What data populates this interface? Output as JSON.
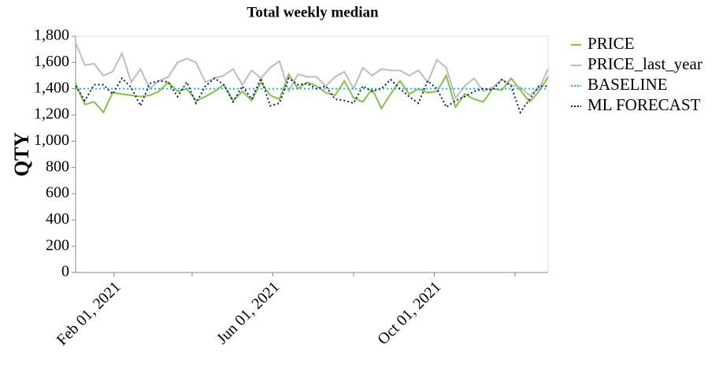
{
  "chart_data": {
    "type": "line",
    "title": "Total weekly median",
    "ylabel": "QTY",
    "x": [
      "2021-01-03",
      "2021-01-10",
      "2021-01-17",
      "2021-01-24",
      "2021-01-31",
      "2021-02-07",
      "2021-02-14",
      "2021-02-21",
      "2021-02-28",
      "2021-03-07",
      "2021-03-14",
      "2021-03-21",
      "2021-03-28",
      "2021-04-04",
      "2021-04-11",
      "2021-04-18",
      "2021-04-25",
      "2021-05-02",
      "2021-05-09",
      "2021-05-16",
      "2021-05-23",
      "2021-05-30",
      "2021-06-06",
      "2021-06-13",
      "2021-06-20",
      "2021-06-27",
      "2021-07-04",
      "2021-07-11",
      "2021-07-18",
      "2021-07-25",
      "2021-08-01",
      "2021-08-08",
      "2021-08-15",
      "2021-08-22",
      "2021-08-29",
      "2021-09-05",
      "2021-09-12",
      "2021-09-19",
      "2021-09-26",
      "2021-10-03",
      "2021-10-10",
      "2021-10-17",
      "2021-10-24",
      "2021-10-31",
      "2021-11-07",
      "2021-11-14",
      "2021-11-21",
      "2021-11-28",
      "2021-12-05",
      "2021-12-12",
      "2021-12-19",
      "2021-12-26"
    ],
    "xlim": [
      "2021-01-03",
      "2021-12-26"
    ],
    "xticks": [
      {
        "value": "2021-02-01",
        "label": "Feb 01, 2021"
      },
      {
        "value": "2021-04-01",
        "label": null
      },
      {
        "value": "2021-06-01",
        "label": "Jun 01, 2021"
      },
      {
        "value": "2021-08-01",
        "label": null
      },
      {
        "value": "2021-10-01",
        "label": "Oct 01, 2021"
      },
      {
        "value": "2021-12-01",
        "label": null
      }
    ],
    "ylim": [
      0,
      1800
    ],
    "yticks": [
      0,
      200,
      400,
      600,
      800,
      {
        "value": 1000,
        "label": "1,000"
      },
      {
        "value": 1200,
        "label": "1,200"
      },
      {
        "value": 1400,
        "label": "1,400"
      },
      {
        "value": 1600,
        "label": "1,600"
      },
      {
        "value": 1800,
        "label": "1,800"
      }
    ],
    "legend": "right",
    "series": [
      {
        "name": "PRICE",
        "color": "#86c04a",
        "dash": "solid",
        "values": [
          1440,
          1280,
          1300,
          1220,
          1370,
          1360,
          1350,
          1340,
          1350,
          1380,
          1450,
          1380,
          1400,
          1310,
          1340,
          1380,
          1430,
          1310,
          1380,
          1310,
          1450,
          1350,
          1320,
          1510,
          1400,
          1450,
          1420,
          1370,
          1350,
          1460,
          1330,
          1300,
          1400,
          1250,
          1360,
          1460,
          1360,
          1400,
          1370,
          1380,
          1500,
          1260,
          1360,
          1320,
          1300,
          1400,
          1390,
          1480,
          1390,
          1300,
          1380,
          1490
        ]
      },
      {
        "name": "PRICE_last_year",
        "color": "#bdbdbd",
        "dash": "solid",
        "values": [
          1750,
          1580,
          1590,
          1500,
          1530,
          1670,
          1450,
          1550,
          1400,
          1460,
          1490,
          1600,
          1630,
          1600,
          1450,
          1480,
          1500,
          1550,
          1430,
          1540,
          1480,
          1560,
          1610,
          1380,
          1510,
          1490,
          1490,
          1420,
          1490,
          1530,
          1400,
          1560,
          1500,
          1550,
          1540,
          1540,
          1500,
          1540,
          1450,
          1620,
          1560,
          1330,
          1420,
          1480,
          1380,
          1410,
          1470,
          1430,
          1410,
          1350,
          1400,
          1550
        ]
      },
      {
        "name": "BASELINE",
        "color": "#1fb6d6",
        "dash": "dotted",
        "values": [
          1400,
          1400,
          1400,
          1400,
          1400,
          1400,
          1400,
          1400,
          1400,
          1400,
          1400,
          1400,
          1400,
          1400,
          1400,
          1400,
          1400,
          1400,
          1400,
          1400,
          1400,
          1400,
          1400,
          1400,
          1400,
          1400,
          1400,
          1400,
          1400,
          1400,
          1400,
          1400,
          1400,
          1400,
          1400,
          1400,
          1400,
          1400,
          1400,
          1400,
          1400,
          1400,
          1400,
          1400,
          1400,
          1400,
          1400,
          1400,
          1400,
          1400,
          1400,
          1400
        ]
      },
      {
        "name": "ML FORECAST",
        "color": "#1b1b5c",
        "dash": "dotted",
        "values": [
          1420,
          1310,
          1430,
          1430,
          1360,
          1480,
          1410,
          1270,
          1440,
          1460,
          1450,
          1340,
          1450,
          1290,
          1420,
          1480,
          1430,
          1300,
          1420,
          1320,
          1480,
          1270,
          1290,
          1480,
          1430,
          1440,
          1400,
          1420,
          1320,
          1310,
          1290,
          1420,
          1380,
          1400,
          1470,
          1400,
          1340,
          1290,
          1460,
          1400,
          1260,
          1310,
          1340,
          1380,
          1400,
          1390,
          1470,
          1420,
          1220,
          1320,
          1420,
          1420
        ]
      }
    ]
  }
}
